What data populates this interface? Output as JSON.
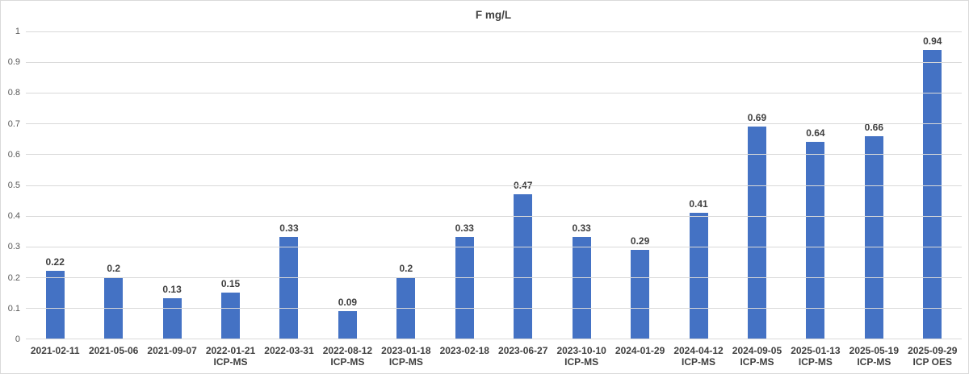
{
  "chart_data": {
    "type": "bar",
    "title": "F mg/L",
    "xlabel": "",
    "ylabel": "",
    "legend": "none",
    "grid": "horizontal",
    "ylim": [
      0,
      1
    ],
    "yticks": [
      0,
      0.1,
      0.2,
      0.3,
      0.4,
      0.5,
      0.6,
      0.7,
      0.8,
      0.9,
      1
    ],
    "ytick_labels": [
      "0",
      "0.1",
      "0.2",
      "0.3",
      "0.4",
      "0.5",
      "0.6",
      "0.7",
      "0.8",
      "0.9",
      "1"
    ],
    "categories": [
      "2021-02-11",
      "2021-05-06",
      "2021-09-07",
      "2022-01-21",
      "2022-03-31",
      "2022-08-12",
      "2023-01-18",
      "2023-02-18",
      "2023-06-27",
      "2023-10-10",
      "2024-01-29",
      "2024-04-12",
      "2024-09-05",
      "2025-01-13",
      "2025-05-19",
      "2025-09-29"
    ],
    "category_sublabels": [
      "",
      "",
      "",
      "ICP-MS",
      "",
      "ICP-MS",
      "ICP-MS",
      "",
      "",
      "ICP-MS",
      "",
      "ICP-MS",
      "ICP-MS",
      "ICP-MS",
      "ICP-MS",
      "ICP OES"
    ],
    "values": [
      0.22,
      0.2,
      0.13,
      0.15,
      0.33,
      0.09,
      0.2,
      0.33,
      0.47,
      0.33,
      0.29,
      0.41,
      0.69,
      0.64,
      0.66,
      0.94
    ],
    "data_labels": [
      "0.22",
      "0.2",
      "0.13",
      "0.15",
      "0.33",
      "0.09",
      "0.2",
      "0.33",
      "0.47",
      "0.33",
      "0.29",
      "0.41",
      "0.69",
      "0.64",
      "0.66",
      "0.94"
    ],
    "bar_color": "#4472C4",
    "gridline_color": "#D9D9D9",
    "tick_label_color": "#595959",
    "data_label_color": "#3f3f3f"
  }
}
